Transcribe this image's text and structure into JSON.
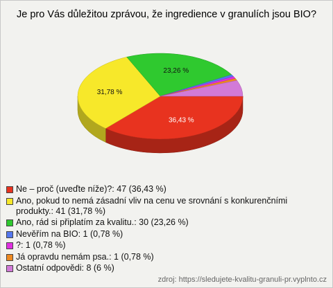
{
  "chart_data": {
    "type": "pie",
    "title": "Je pro Vás důležitou zprávou, že ingredience v granulích jsou BIO?",
    "categories": [
      "Ne – proč (uveďte níže)?",
      "Ano, pokud to nemá zásadní vliv na cenu ve srovnání s konkurenčními produkty.",
      "Ano, rád si připlatím za kvalitu.",
      "Nevěřím na BIO",
      "?",
      "Já opravdu nemám psa.",
      "Ostatní odpovědi"
    ],
    "values": [
      36.43,
      31.78,
      23.26,
      0.78,
      0.78,
      0.78,
      6
    ],
    "value_labels": [
      "36,43 %",
      "31,78 %",
      "23,26 %",
      null,
      null,
      null,
      null
    ],
    "counts": [
      47,
      41,
      30,
      1,
      1,
      1,
      8
    ],
    "colors": [
      "#e8331f",
      "#f7e82a",
      "#2fc92f",
      "#5577ee",
      "#e02fe0",
      "#ee8a22",
      "#d27ad8"
    ],
    "legend": [
      "Ne – proč (uveďte níže)?: 47 (36,43 %)",
      "Ano, pokud to nemá zásadní vliv na cenu ve srovnání s konkurenčními produkty.: 41 (31,78 %)",
      "Ano, rád si připlatím za kvalitu.: 30 (23,26 %)",
      "Nevěřím na BIO: 1 (0,78 %)",
      "?: 1 (0,78 %)",
      "Já opravdu nemám psa.: 1 (0,78 %)",
      "Ostatní odpovědi: 8 (6 %)"
    ],
    "source": "zdroj: https://sledujete-kvalitu-granuli-pr.vyplnto.cz"
  }
}
